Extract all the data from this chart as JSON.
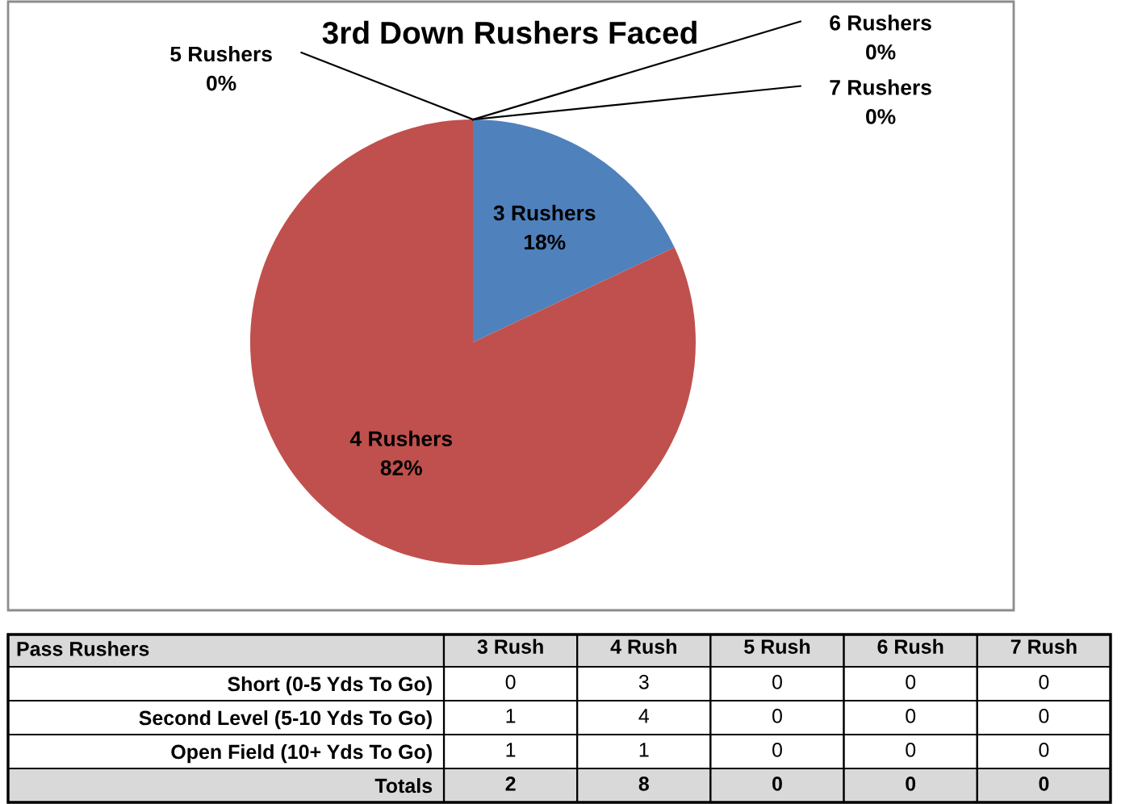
{
  "chart_data": [
    {
      "type": "pie",
      "title": "3rd Down Rushers Faced",
      "categories": [
        "3 Rushers",
        "4 Rushers",
        "5 Rushers",
        "6 Rushers",
        "7 Rushers"
      ],
      "values": [
        18,
        82,
        0,
        0,
        0
      ],
      "value_labels": [
        "18%",
        "82%",
        "0%",
        "0%",
        "0%"
      ],
      "colors": [
        "#4f81bd",
        "#c0504d",
        "#9bbb59",
        "#8064a2",
        "#4bacc6"
      ],
      "legend": false
    },
    {
      "type": "heatmap",
      "ylabel": "Pass Rushers",
      "categories": [
        "3 Rush",
        "4 Rush",
        "5 Rush",
        "6 Rush",
        "7 Rush"
      ],
      "y_categories": [
        "Short (0-5 Yds To Go)",
        "Second Level (5-10 Yds To Go)",
        "Open Field (10+ Yds To Go)",
        "Totals"
      ],
      "cells": [
        [
          0,
          3,
          0,
          0,
          0
        ],
        [
          1,
          4,
          0,
          0,
          0
        ],
        [
          1,
          1,
          0,
          0,
          0
        ],
        [
          2,
          8,
          0,
          0,
          0
        ]
      ],
      "data_labels": true
    }
  ]
}
